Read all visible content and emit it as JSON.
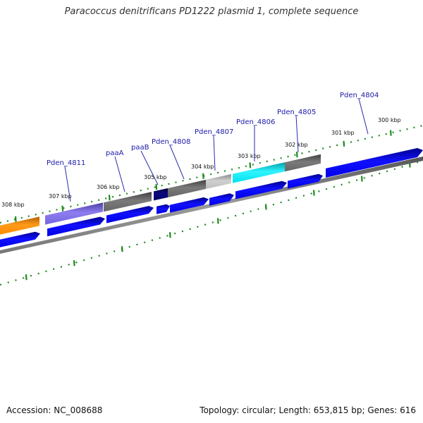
{
  "title": "Paracoccus denitrificans PD1222 plasmid 1, complete sequence",
  "footer": {
    "accession": "Accession: NC_008688",
    "topology": "Topology: circular; Length: 653,815 bp; Genes: 616"
  },
  "ticks": [
    "308 kbp",
    "307 kbp",
    "306 kbp",
    "305 kbp",
    "304 kbp",
    "303 kbp",
    "302 kbp",
    "301 kbp",
    "300 kbp"
  ],
  "gene_labels": [
    "Pden_4811",
    "paaA",
    "paaB",
    "Pden_4808",
    "Pden_4807",
    "Pden_4806",
    "Pden_4805",
    "Pden_4804"
  ],
  "colors": {
    "orange": "#ff8c00",
    "slate": "#7b68ee",
    "gray": "#6e6e6e",
    "navy": "#00006e",
    "lightgray": "#bbbbbb",
    "cyan": "#00e5ee",
    "blue": "#0000ee",
    "tick": "#1f8a1f"
  }
}
